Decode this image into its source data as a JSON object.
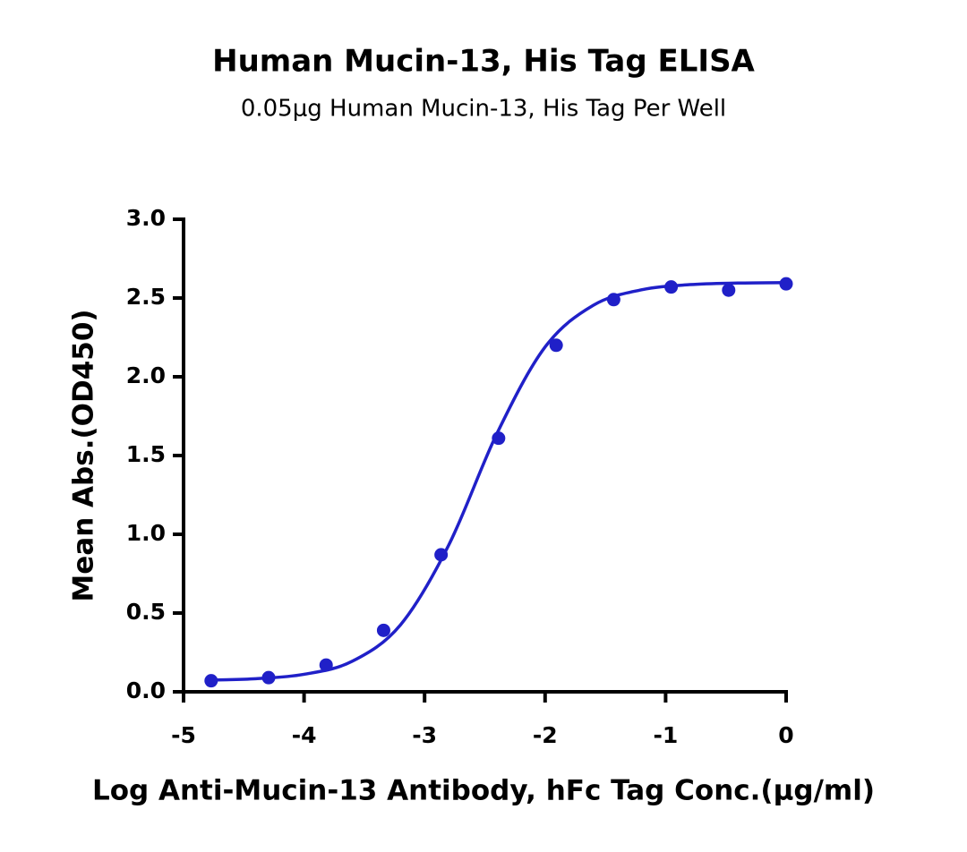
{
  "chart_data": {
    "type": "scatter",
    "title": "Human Mucin-13, His Tag ELISA",
    "subtitle": "0.05μg Human Mucin-13, His Tag Per Well",
    "x_label": "Log Anti-Mucin-13 Antibody, hFc Tag Conc.(μg/ml)",
    "y_label": "Mean Abs.(OD450)",
    "xlim": [
      -5,
      0
    ],
    "xticks": [
      -5,
      -4,
      -3,
      -2,
      -1,
      0
    ],
    "ylim": [
      0,
      3
    ],
    "yticks": [
      {
        "value": 0,
        "label": "0.0"
      },
      {
        "value": 0.5,
        "label": "0.5"
      },
      {
        "value": 1,
        "label": "1.0"
      },
      {
        "value": 1.5,
        "label": "1.5"
      },
      {
        "value": 2,
        "label": "2.0"
      },
      {
        "value": 2.5,
        "label": "2.5"
      },
      {
        "value": 3,
        "label": "3.0"
      }
    ],
    "series": [
      {
        "color": "#2020c8",
        "x": [
          -4.771,
          -4.294,
          -3.817,
          -3.34,
          -2.863,
          -2.386,
          -1.908,
          -1.431,
          -0.954,
          -0.477,
          0
        ],
        "values": [
          0.07,
          0.09,
          0.17,
          0.39,
          0.87,
          1.61,
          2.2,
          2.49,
          2.57,
          2.55,
          2.59
        ]
      }
    ],
    "fit_curve": {
      "color": "#2020c8",
      "x": [
        -4.8,
        -4.4,
        -4.0,
        -3.6,
        -3.2,
        -2.8,
        -2.4,
        -2.0,
        -1.6,
        -1.2,
        -0.8,
        -0.4,
        0
      ],
      "values": [
        0.074,
        0.083,
        0.111,
        0.194,
        0.425,
        0.931,
        1.639,
        2.189,
        2.454,
        2.552,
        2.585,
        2.595,
        2.598
      ]
    }
  }
}
